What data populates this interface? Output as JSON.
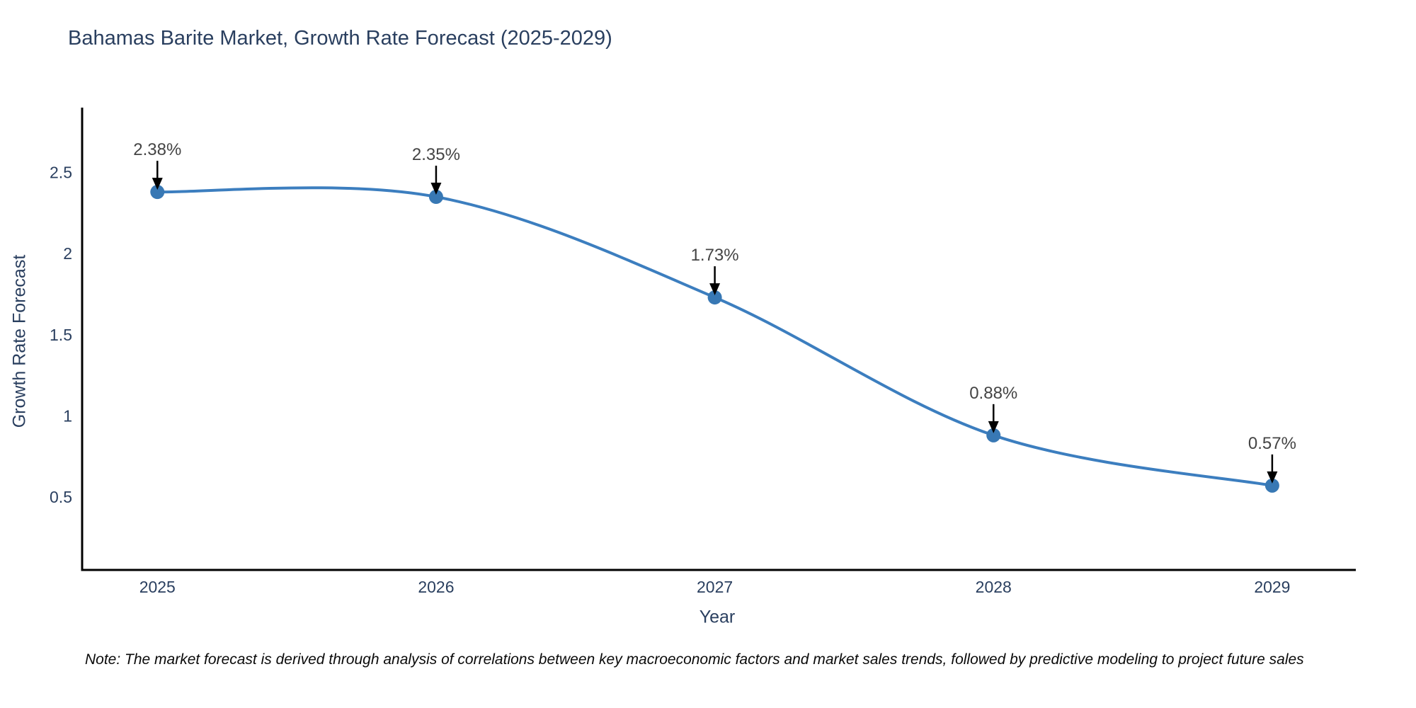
{
  "page": {
    "note": "Note: The market forecast is derived through analysis of correlations between key macroeconomic factors and market sales trends, followed by predictive modeling to project future sales"
  },
  "chart_data": {
    "type": "line",
    "title": "Bahamas Barite Market, Growth Rate Forecast (2025-2029)",
    "xlabel": "Year",
    "ylabel": "Growth Rate Forecast",
    "x": [
      2025,
      2026,
      2027,
      2028,
      2029
    ],
    "series": [
      {
        "name": "Growth Rate Forecast",
        "values": [
          2.38,
          2.35,
          1.73,
          0.88,
          0.57
        ]
      }
    ],
    "point_labels": [
      "2.38%",
      "2.35%",
      "1.73%",
      "0.88%",
      "0.57%"
    ],
    "yticks": [
      0.5,
      1,
      1.5,
      2,
      2.5
    ],
    "xticks": [
      2025,
      2026,
      2027,
      2028,
      2029
    ],
    "xlim": [
      2024.73,
      2029.3
    ],
    "ylim": [
      0.05,
      2.9
    ],
    "grid": false,
    "legend": false,
    "line_shape": "spline",
    "annotations_have_arrows": true,
    "colors": {
      "line": "#3c7ebf",
      "marker": "#3878b4",
      "axis": "#000000",
      "tick_text": "#2a3f5f",
      "annotation_text": "#444444",
      "annotation_arrow": "#000000",
      "background": "#ffffff"
    }
  }
}
